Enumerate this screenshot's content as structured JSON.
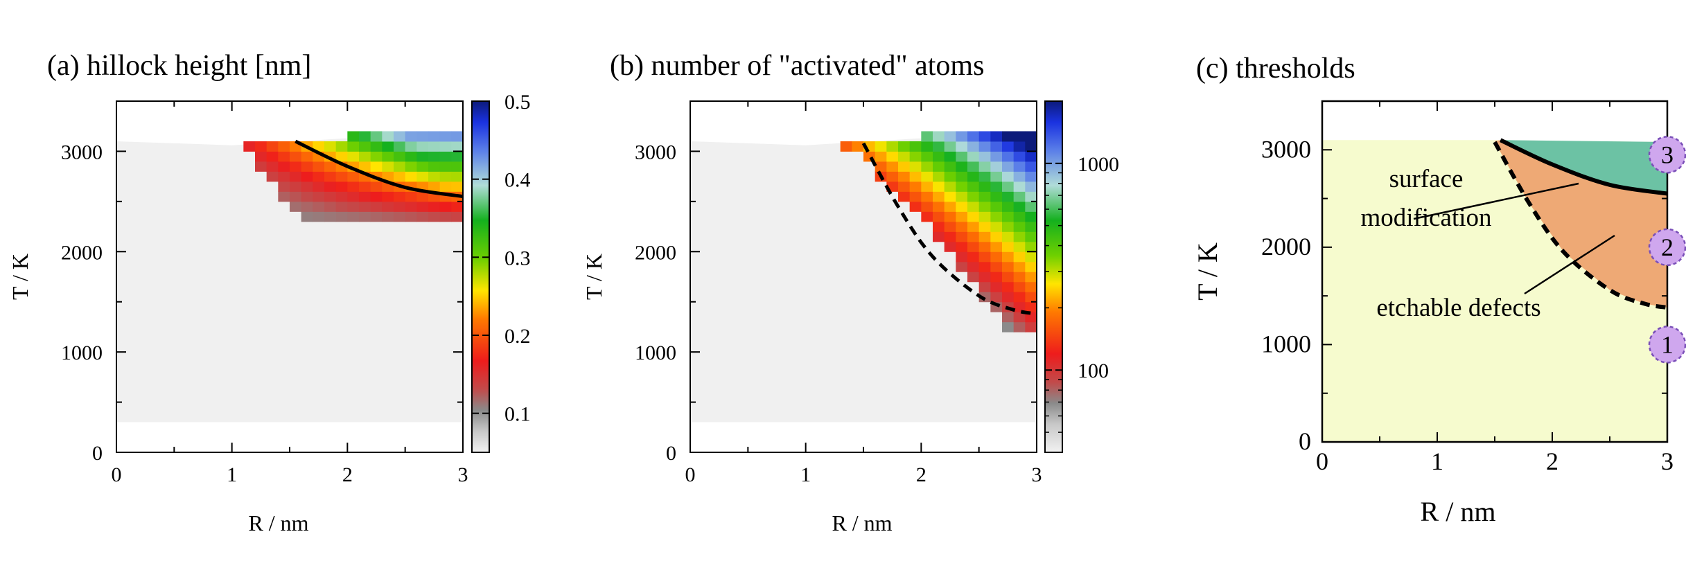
{
  "chart_data": [
    {
      "id": "a",
      "type": "heatmap",
      "title": "(a) hillock height [nm]",
      "xlabel": "R / nm",
      "ylabel": "T / K",
      "xlim": [
        0,
        3
      ],
      "ylim": [
        0,
        3500
      ],
      "x_ticks": [
        "0",
        "1",
        "2",
        "3"
      ],
      "y_ticks": [
        "0",
        "1000",
        "2000",
        "3000"
      ],
      "colorbar": {
        "min": 0.05,
        "max": 0.5,
        "scale": "linear",
        "ticks": [
          "0.1",
          "0.2",
          "0.3",
          "0.4",
          "0.5"
        ],
        "tick_values": [
          0.1,
          0.2,
          0.3,
          0.4,
          0.5
        ]
      },
      "overlay_curve": {
        "style": "solid",
        "points": [
          [
            1.55,
            3100
          ],
          [
            2.0,
            2850
          ],
          [
            2.5,
            2640
          ],
          [
            3.0,
            2550
          ]
        ]
      }
    },
    {
      "id": "b",
      "type": "heatmap",
      "title": "(b)  number of \"activated\" atoms",
      "xlabel": "R / nm",
      "ylabel": "T / K",
      "xlim": [
        0,
        3
      ],
      "ylim": [
        0,
        3500
      ],
      "x_ticks": [
        "0",
        "1",
        "2",
        "3"
      ],
      "y_ticks": [
        "0",
        "1000",
        "2000",
        "3000"
      ],
      "colorbar": {
        "min": 40,
        "max": 2000,
        "scale": "log",
        "ticks": [
          "100",
          "1000"
        ],
        "tick_values": [
          100,
          1000
        ]
      },
      "overlay_curve": {
        "style": "dashed",
        "points": [
          [
            1.5,
            3080
          ],
          [
            1.8,
            2450
          ],
          [
            2.1,
            1950
          ],
          [
            2.5,
            1560
          ],
          [
            2.8,
            1420
          ],
          [
            3.0,
            1380
          ]
        ]
      }
    },
    {
      "id": "c",
      "type": "area",
      "title": "(c) thresholds",
      "xlabel": "R / nm",
      "ylabel": "T / K",
      "xlim": [
        0,
        3
      ],
      "ylim": [
        0,
        3500
      ],
      "x_ticks": [
        "0",
        "1",
        "2",
        "3"
      ],
      "y_ticks": [
        "0",
        "1000",
        "2000",
        "3000"
      ],
      "regions": [
        {
          "label": "surface modification",
          "color": "#6cc2a4"
        },
        {
          "label": "etchable defects",
          "color": "#eea975"
        }
      ],
      "annotations": [
        "surface",
        "modification",
        "etchable defects"
      ],
      "markers": [
        {
          "label": "1",
          "y": 1000
        },
        {
          "label": "2",
          "y": 2000
        },
        {
          "label": "3",
          "y": 2950
        }
      ],
      "background_color": "#f6fbce",
      "marker_color": "#cfa7ee"
    }
  ]
}
